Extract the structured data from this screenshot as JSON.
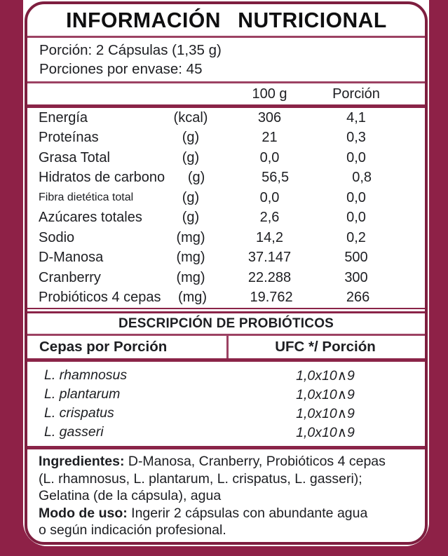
{
  "colors": {
    "maroon": "#8e2147",
    "border": "#7e1e3f",
    "divider": "#9c4263",
    "thick": "#8a2448",
    "ink": "#1d1e22"
  },
  "panel": {
    "title": "INFORMACIÓN NUTRICIONAL",
    "serving": {
      "line1": "Porción: 2 Cápsulas (1,35 g)",
      "line2": "Porciones por envase: 45"
    },
    "nutrition_table": {
      "col_per100": "100 g",
      "col_portion": "Porción",
      "rows": [
        {
          "label": "Energía",
          "unit": "(kcal)",
          "per100": "306",
          "portion": "4,1"
        },
        {
          "label": "Proteínas",
          "unit": "(g)",
          "per100": "21",
          "portion": "0,3"
        },
        {
          "label": "Grasa Total",
          "unit": "(g)",
          "per100": "0,0",
          "portion": "0,0"
        },
        {
          "label": "Hidratos de carbono",
          "unit": "(g)",
          "per100": "56,5",
          "portion": "0,8"
        },
        {
          "label": "Fibra dietética total",
          "unit": "(g)",
          "per100": "0,0",
          "portion": "0,0",
          "small": true
        },
        {
          "label": "Azúcares totales",
          "unit": "(g)",
          "per100": "2,6",
          "portion": "0,0"
        },
        {
          "label": "Sodio",
          "unit": "(mg)",
          "per100": "14,2",
          "portion": "0,2"
        },
        {
          "label": "D-Manosa",
          "unit": "(mg)",
          "per100": "37.147",
          "portion": "500"
        },
        {
          "label": "Cranberry",
          "unit": "(mg)",
          "per100": "22.288",
          "portion": "300"
        },
        {
          "label": "Probióticos 4 cepas",
          "unit": "(mg)",
          "per100": "19.762",
          "portion": "266"
        }
      ]
    },
    "probiotics": {
      "section_title": "DESCRIPCIÓN DE PROBIÓTICOS",
      "col_strain": "Cepas por Porción",
      "col_ufc": "UFC */ Porción",
      "rows": [
        {
          "strain": "L. rhamnosus",
          "ufc": "1,0x10∧9"
        },
        {
          "strain": "L. plantarum",
          "ufc": "1,0x10∧9"
        },
        {
          "strain": "L. crispatus",
          "ufc": "1,0x10∧9"
        },
        {
          "strain": "L. gasseri",
          "ufc": "1,0x10∧9"
        }
      ]
    },
    "footer": {
      "lines": [
        {
          "bold": "Ingredientes:",
          "rest": " D-Manosa, Cranberry, Probióticos 4 cepas"
        },
        {
          "bold": "",
          "rest": "(L. rhamnosus, L. plantarum, L. crispatus, L. gasseri);"
        },
        {
          "bold": "",
          "rest": "Gelatina (de la cápsula), agua"
        },
        {
          "bold": "Modo de uso:",
          "rest": " Ingerir 2 cápsulas con abundante agua"
        },
        {
          "bold": "",
          "rest": "o según indicación profesional."
        }
      ]
    }
  }
}
